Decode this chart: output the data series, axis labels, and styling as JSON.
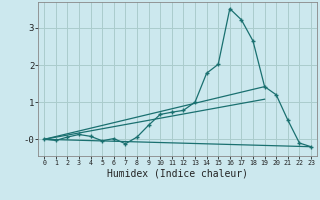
{
  "xlabel": "Humidex (Indice chaleur)",
  "background_color": "#cce8ee",
  "grid_color": "#aacccc",
  "line_color": "#1a7070",
  "xlim": [
    -0.5,
    23.5
  ],
  "ylim": [
    -0.45,
    3.7
  ],
  "yticks": [
    0,
    1,
    2,
    3
  ],
  "ytick_labels": [
    "-0",
    "1",
    "2",
    "3"
  ],
  "xticks": [
    0,
    1,
    2,
    3,
    4,
    5,
    6,
    7,
    8,
    9,
    10,
    11,
    12,
    13,
    14,
    15,
    16,
    17,
    18,
    19,
    20,
    21,
    22,
    23
  ],
  "main_series": {
    "x": [
      0,
      1,
      2,
      3,
      4,
      5,
      6,
      7,
      8,
      9,
      10,
      11,
      12,
      13,
      14,
      15,
      16,
      17,
      18,
      19,
      20,
      21,
      22,
      23
    ],
    "y": [
      0.0,
      -0.03,
      0.06,
      0.13,
      0.08,
      -0.04,
      0.02,
      -0.12,
      0.06,
      0.38,
      0.67,
      0.73,
      0.78,
      1.0,
      1.78,
      2.02,
      3.52,
      3.22,
      2.65,
      1.42,
      1.2,
      0.52,
      -0.1,
      -0.2
    ]
  },
  "straight_lines": [
    {
      "x": [
        0,
        19
      ],
      "y": [
        0.0,
        1.42
      ]
    },
    {
      "x": [
        0,
        19
      ],
      "y": [
        0.0,
        1.08
      ]
    },
    {
      "x": [
        0,
        23
      ],
      "y": [
        0.0,
        -0.2
      ]
    }
  ]
}
